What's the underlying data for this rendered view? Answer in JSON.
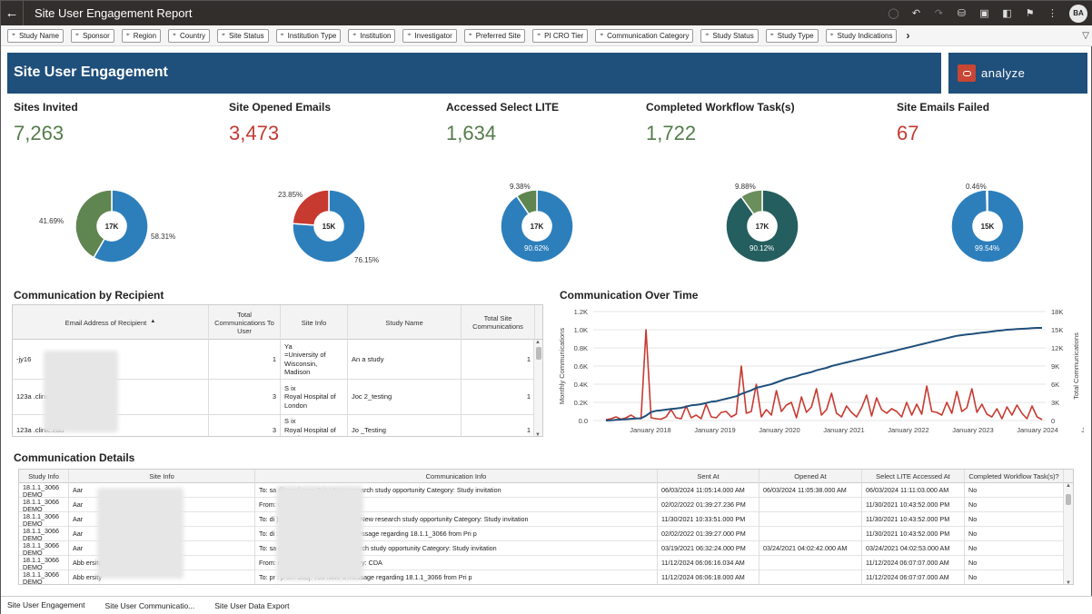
{
  "titlebar": {
    "title": "Site User Engagement Report",
    "user_initials": "BA"
  },
  "filters": [
    "Study Name",
    "Sponsor",
    "Region",
    "Country",
    "Site Status",
    "Institution Type",
    "Institution",
    "Investigator",
    "Preferred Site",
    "PI CRO Tier",
    "Communication Category",
    "Study Status",
    "Study Type",
    "Study Indications"
  ],
  "banner": {
    "title": "Site User Engagement",
    "logo_text": "analyze"
  },
  "kpis": [
    {
      "label": "Sites Invited",
      "value": "7,263",
      "color": "green"
    },
    {
      "label": "Site Opened Emails",
      "value": "3,473",
      "color": "red"
    },
    {
      "label": "Accessed Select LITE",
      "value": "1,634",
      "color": "green"
    },
    {
      "label": "Completed Workflow Task(s)",
      "value": "1,722",
      "color": "green"
    },
    {
      "label": "Site Emails Failed",
      "value": "67",
      "color": "red"
    }
  ],
  "donuts": [
    {
      "center": "17K",
      "small_pct": "41.69%",
      "large_pct": "58.31%",
      "small_frac": 0.4169,
      "small_color": "#5f8550",
      "large_color": "#2d7fbc",
      "small_label_side": "left"
    },
    {
      "center": "15K",
      "small_pct": "23.85%",
      "large_pct": "76.15%",
      "small_frac": 0.2385,
      "small_color": "#c73a30",
      "large_color": "#2d7fbc",
      "small_label_side": "topleft"
    },
    {
      "center": "17K",
      "small_pct": "9.38%",
      "large_pct": "90.62%",
      "small_frac": 0.0938,
      "small_color": "#5f8550",
      "large_color": "#2d7fbc",
      "small_label_side": "top"
    },
    {
      "center": "17K",
      "small_pct": "9.88%",
      "large_pct": "90.12%",
      "small_frac": 0.0988,
      "small_color": "#6a8f5c",
      "large_color": "#245e5f",
      "small_label_side": "top"
    },
    {
      "center": "15K",
      "small_pct": "0.46%",
      "large_pct": "99.54%",
      "small_frac": 0.0046,
      "small_color": "#c73a30",
      "large_color": "#2d7fbc",
      "small_label_side": "top"
    }
  ],
  "recipient": {
    "title": "Communication by Recipient",
    "columns": [
      "Email Address of Recipient",
      "Total Communications To User",
      "Site Info",
      "Study Name",
      "Total Site Communications"
    ],
    "rows": [
      {
        "email": "-jy16",
        "total_user": "1",
        "site": "Ya\n=University of Wisconsin, Madison",
        "study": "An     a study",
        "total_site": "1"
      },
      {
        "email": "123a                .clinic.edu",
        "total_user": "3",
        "site": "S            ix\nRoyal Hospital of London",
        "study": "Joc        2_testing",
        "total_site": "1"
      },
      {
        "email": "123a                .clinic.edu",
        "total_user": "3",
        "site": "S            ix\nRoyal Hospital of London",
        "study": "Jo          _Testing",
        "total_site": "1"
      }
    ]
  },
  "overtime": {
    "title": "Communication Over Time"
  },
  "chart_data": {
    "type": "line",
    "title": "Communication Over Time",
    "ylabel": "Monthly Communications",
    "y2label": "Total Communications",
    "ylim": [
      0,
      1200
    ],
    "y2lim": [
      0,
      18000
    ],
    "yticks": [
      "0.0",
      "0.2K",
      "0.4K",
      "0.6K",
      "0.8K",
      "1.0K",
      "1.2K"
    ],
    "y2ticks": [
      "0",
      "3K",
      "6K",
      "9K",
      "12K",
      "15K",
      "18K"
    ],
    "xticks": [
      "January 2018",
      "January 2019",
      "January 2020",
      "January 2021",
      "January 2022",
      "January 2023",
      "January 2024",
      "January 2025"
    ],
    "series": [
      {
        "name": "Monthly Communications",
        "color": "#c73a30",
        "axis": "left",
        "values": [
          10,
          20,
          40,
          15,
          30,
          60,
          25,
          20,
          1000,
          30,
          20,
          15,
          40,
          120,
          30,
          20,
          160,
          30,
          60,
          20,
          180,
          40,
          30,
          90,
          100,
          40,
          70,
          600,
          80,
          100,
          400,
          40,
          120,
          60,
          330,
          100,
          170,
          200,
          30,
          260,
          90,
          150,
          350,
          60,
          120,
          300,
          80,
          40,
          160,
          90,
          40,
          140,
          280,
          50,
          250,
          120,
          80,
          130,
          100,
          40,
          200,
          60,
          180,
          70,
          380,
          100,
          90,
          60,
          200,
          80,
          320,
          100,
          140,
          350,
          90,
          180,
          70,
          40,
          130,
          20,
          150,
          60,
          170,
          80,
          20,
          160,
          40,
          10
        ]
      },
      {
        "name": "Total Communications",
        "color": "#1f4f7b",
        "axis": "right",
        "values": [
          0,
          50,
          120,
          160,
          210,
          290,
          330,
          380,
          800,
          1400,
          1600,
          1700,
          1800,
          1900,
          2000,
          2100,
          2300,
          2500,
          2600,
          2700,
          2900,
          3100,
          3200,
          3400,
          3600,
          3800,
          4000,
          4400,
          4700,
          5000,
          5400,
          5600,
          5800,
          6000,
          6300,
          6600,
          6900,
          7100,
          7300,
          7600,
          7800,
          8000,
          8300,
          8500,
          8700,
          9000,
          9200,
          9400,
          9600,
          9800,
          10000,
          10200,
          10400,
          10600,
          10800,
          11000,
          11200,
          11400,
          11600,
          11800,
          12000,
          12200,
          12400,
          12600,
          12800,
          13000,
          13200,
          13400,
          13600,
          13800,
          14000,
          14100,
          14200,
          14300,
          14400,
          14500,
          14600,
          14700,
          14800,
          14900,
          15000,
          15050,
          15100,
          15150,
          15200,
          15250,
          15300,
          15300
        ]
      }
    ]
  },
  "details": {
    "title": "Communication Details",
    "columns": [
      "Study Info",
      "Site Info",
      "Communication Info",
      "Sent At",
      "Opened At",
      "Select LITE Accessed At",
      "Completed Workflow Task(s)?"
    ],
    "rows": [
      {
        "study": "18.1.1_3066 DEMO",
        "site": "Aar",
        "comm": "To: sa                                  @gmail.com Subj: New research study opportunity Category: Study invitation",
        "sent": "06/03/2024 11:05:14.000 AM",
        "opened": "06/03/2024 11:05:38.000 AM",
        "lite": "06/03/2024 11:11:03.000 AM",
        "done": "No"
      },
      {
        "study": "18.1.1_3066 DEMO",
        "site": "Aar",
        "comm": "From:                                   m Subj: CDA Category: CDA",
        "sent": "02/02/2022 01:39:27.236 PM",
        "opened": "",
        "lite": "11/30/2021 10:43:52.000 PM",
        "done": "No"
      },
      {
        "study": "18.1.1_3066 DEMO",
        "site": "Aar",
        "comm": "To: di                                  ): jlofton@gobalto.com Subj: New research study opportunity Category: Study invitation",
        "sent": "11/30/2021 10:33:51.000 PM",
        "opened": "",
        "lite": "11/30/2021 10:43:52.000 PM",
        "done": "No"
      },
      {
        "study": "18.1.1_3066 DEMO",
        "site": "Aar",
        "comm": "To: di                                 : pr                       com Subj: You have a message regarding 18.1.1_3066 from Pri          p",
        "sent": "02/02/2022 01:39:27.000 PM",
        "opened": "",
        "lite": "11/30/2021 10:43:52.000 PM",
        "done": "No"
      },
      {
        "study": "18.1.1_3066 DEMO",
        "site": "Aar",
        "comm": "To: sa                                  obalto.com Subj: New research study opportunity Category: Study invitation",
        "sent": "03/19/2021 06:32:24.000 PM",
        "opened": "03/24/2021 04:02:42.000 AM",
        "lite": "03/24/2021 04:02:53.000 AM",
        "done": "No"
      },
      {
        "study": "18.1.1_3066 DEMO",
        "site": "Abb                               ersity",
        "comm": "From:                                   n Subj: CDA Review Category: CDA",
        "sent": "11/12/2024 06:06:16.034 AM",
        "opened": "",
        "lite": "11/12/2024 06:07:07.000 AM",
        "done": "No"
      },
      {
        "study": "18.1.1_3066 DEMO",
        "site": "Abb                               ersity",
        "comm": "To: pr                                 : p                        om Subj: You have a message regarding 18.1.1_3066 from Pri          p",
        "sent": "11/12/2024 06:06:18.000 AM",
        "opened": "",
        "lite": "11/12/2024 06:07:07.000 AM",
        "done": "No"
      }
    ]
  },
  "tabs": [
    "Site User Engagement",
    "Site User Communicatio...",
    "Site User Data Export"
  ]
}
